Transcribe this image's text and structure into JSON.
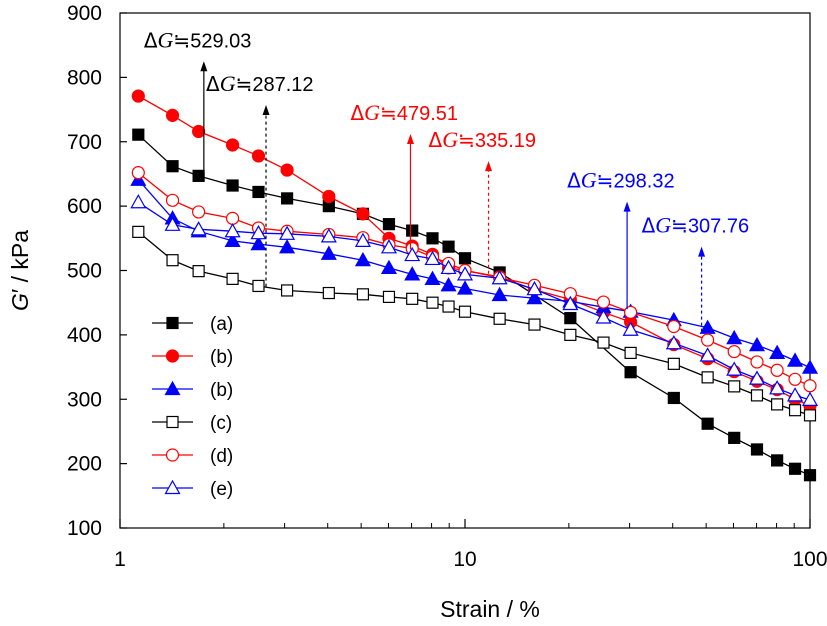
{
  "chart_data": {
    "type": "line",
    "xscale": "log",
    "xlim": [
      1,
      100
    ],
    "ylim": [
      100,
      900
    ],
    "xticks": [
      1,
      10,
      100
    ],
    "xtick_labels": [
      "1",
      "10",
      "100"
    ],
    "yticks": [
      100,
      200,
      300,
      400,
      500,
      600,
      700,
      800,
      900
    ],
    "ytick_labels": [
      "100",
      "200",
      "300",
      "400",
      "500",
      "600",
      "700",
      "800",
      "900"
    ],
    "xlabel": "Strain / %",
    "ylabel_main": "G",
    "ylabel_rest": "′ / kPa",
    "grid": false,
    "legend_position": "bottom-left",
    "series": [
      {
        "name": "(a)",
        "color": "#000000",
        "marker": "square",
        "filled": true,
        "x": [
          1.13,
          1.42,
          1.69,
          2.12,
          2.52,
          3.05,
          4.03,
          5.06,
          6.02,
          7.03,
          8.05,
          8.96,
          10.0,
          12.6,
          20.2,
          30.2,
          40.3,
          50.5,
          60.3,
          70.2,
          80.3,
          90.5,
          100
        ],
        "y": [
          711,
          662,
          647,
          632,
          622,
          612,
          600,
          588,
          572,
          562,
          550,
          537,
          519,
          497,
          426,
          342,
          302,
          262,
          240,
          222,
          205,
          192,
          182
        ]
      },
      {
        "name": "(b)",
        "color": "#ff0000",
        "marker": "circle",
        "filled": true,
        "x": [
          1.13,
          1.42,
          1.69,
          2.12,
          2.52,
          3.05,
          4.03,
          5.06,
          6.02,
          7.03,
          8.05,
          8.96,
          10.0,
          12.6,
          15.9,
          20.2,
          25.2,
          30.2,
          40.3,
          50.5,
          60.3,
          70.2,
          80.3,
          90.5,
          100
        ],
        "y": [
          771,
          741,
          716,
          695,
          678,
          656,
          615,
          588,
          550,
          538,
          525,
          504,
          500,
          490,
          470,
          455,
          435,
          420,
          385,
          363,
          343,
          328,
          315,
          300,
          290
        ]
      },
      {
        "name": "(b)",
        "color": "#0000ff",
        "marker": "triangle",
        "filled": true,
        "x": [
          1.13,
          1.42,
          1.69,
          2.12,
          2.52,
          3.05,
          4.03,
          5.06,
          6.02,
          7.03,
          8.05,
          8.96,
          10.0,
          12.6,
          15.9,
          20.2,
          25.2,
          30.2,
          40.3,
          50.5,
          60.3,
          70.2,
          80.3,
          90.5,
          100
        ],
        "y": [
          641,
          581,
          561,
          546,
          541,
          536,
          526,
          516,
          504,
          494,
          487,
          477,
          472,
          462,
          457,
          452,
          443,
          436,
          423,
          411,
          395,
          384,
          372,
          360,
          349
        ]
      },
      {
        "name": "(c)",
        "color": "#000000",
        "marker": "square",
        "filled": false,
        "x": [
          1.13,
          1.42,
          1.69,
          2.12,
          2.52,
          3.05,
          4.03,
          5.06,
          6.02,
          7.03,
          8.05,
          8.96,
          10.0,
          12.6,
          15.9,
          20.2,
          25.2,
          30.2,
          40.3,
          50.5,
          60.3,
          70.2,
          80.3,
          90.5,
          100
        ],
        "y": [
          560,
          516,
          499,
          487,
          476,
          469,
          465,
          463,
          459,
          456,
          450,
          444,
          436,
          425,
          416,
          400,
          388,
          372,
          355,
          334,
          320,
          306,
          292,
          283,
          275
        ]
      },
      {
        "name": "(d)",
        "color": "#ff0000",
        "marker": "circle",
        "filled": false,
        "x": [
          1.13,
          1.42,
          1.69,
          2.12,
          2.52,
          3.05,
          4.03,
          5.06,
          6.02,
          7.03,
          8.05,
          8.96,
          10.0,
          12.6,
          15.9,
          20.2,
          25.2,
          30.2,
          40.3,
          50.5,
          60.3,
          70.2,
          80.3,
          90.5,
          100
        ],
        "y": [
          652,
          609,
          591,
          581,
          566,
          561,
          556,
          551,
          540,
          534,
          521,
          511,
          500,
          489,
          477,
          464,
          451,
          435,
          413,
          392,
          374,
          358,
          345,
          331,
          321
        ]
      },
      {
        "name": "(e)",
        "color": "#0000ff",
        "marker": "triangle",
        "filled": false,
        "x": [
          1.13,
          1.42,
          1.69,
          2.12,
          2.52,
          3.05,
          4.03,
          5.06,
          6.02,
          7.03,
          8.05,
          8.96,
          10.0,
          12.6,
          15.9,
          20.2,
          25.2,
          30.2,
          40.3,
          50.5,
          60.3,
          70.2,
          80.3,
          90.5,
          100
        ],
        "y": [
          606,
          571,
          564,
          561,
          558,
          557,
          553,
          546,
          536,
          524,
          518,
          504,
          494,
          488,
          471,
          448,
          427,
          408,
          387,
          368,
          346,
          332,
          317,
          306,
          299
        ]
      }
    ],
    "annotations": [
      {
        "delta": "Δ",
        "g": "G",
        "approx": "≒",
        "value": "529.03",
        "color": "#000000",
        "x": 1.75,
        "y_from": 640,
        "y_to": 825,
        "style": "solid"
      },
      {
        "delta": "Δ",
        "g": "G",
        "approx": "≒",
        "value": "287.12",
        "color": "#000000",
        "x": 2.65,
        "y_from": 475,
        "y_to": 757,
        "style": "dashed"
      },
      {
        "delta": "Δ",
        "g": "G",
        "approx": "≒",
        "value": "479.51",
        "color": "#ff0000",
        "x": 6.95,
        "y_from": 533,
        "y_to": 712,
        "style": "solid"
      },
      {
        "delta": "Δ",
        "g": "G",
        "approx": "≒",
        "value": "335.19",
        "color": "#ff0000",
        "x": 11.7,
        "y_from": 495,
        "y_to": 670,
        "style": "dashed"
      },
      {
        "delta": "Δ",
        "g": "G",
        "approx": "≒",
        "value": "298.32",
        "color": "#0000ff",
        "x": 29.5,
        "y_from": 440,
        "y_to": 607,
        "style": "solid"
      },
      {
        "delta": "Δ",
        "g": "G",
        "approx": "≒",
        "value": "307.76",
        "color": "#0000ff",
        "x": 48.5,
        "y_from": 405,
        "y_to": 537,
        "style": "dashed"
      }
    ]
  }
}
